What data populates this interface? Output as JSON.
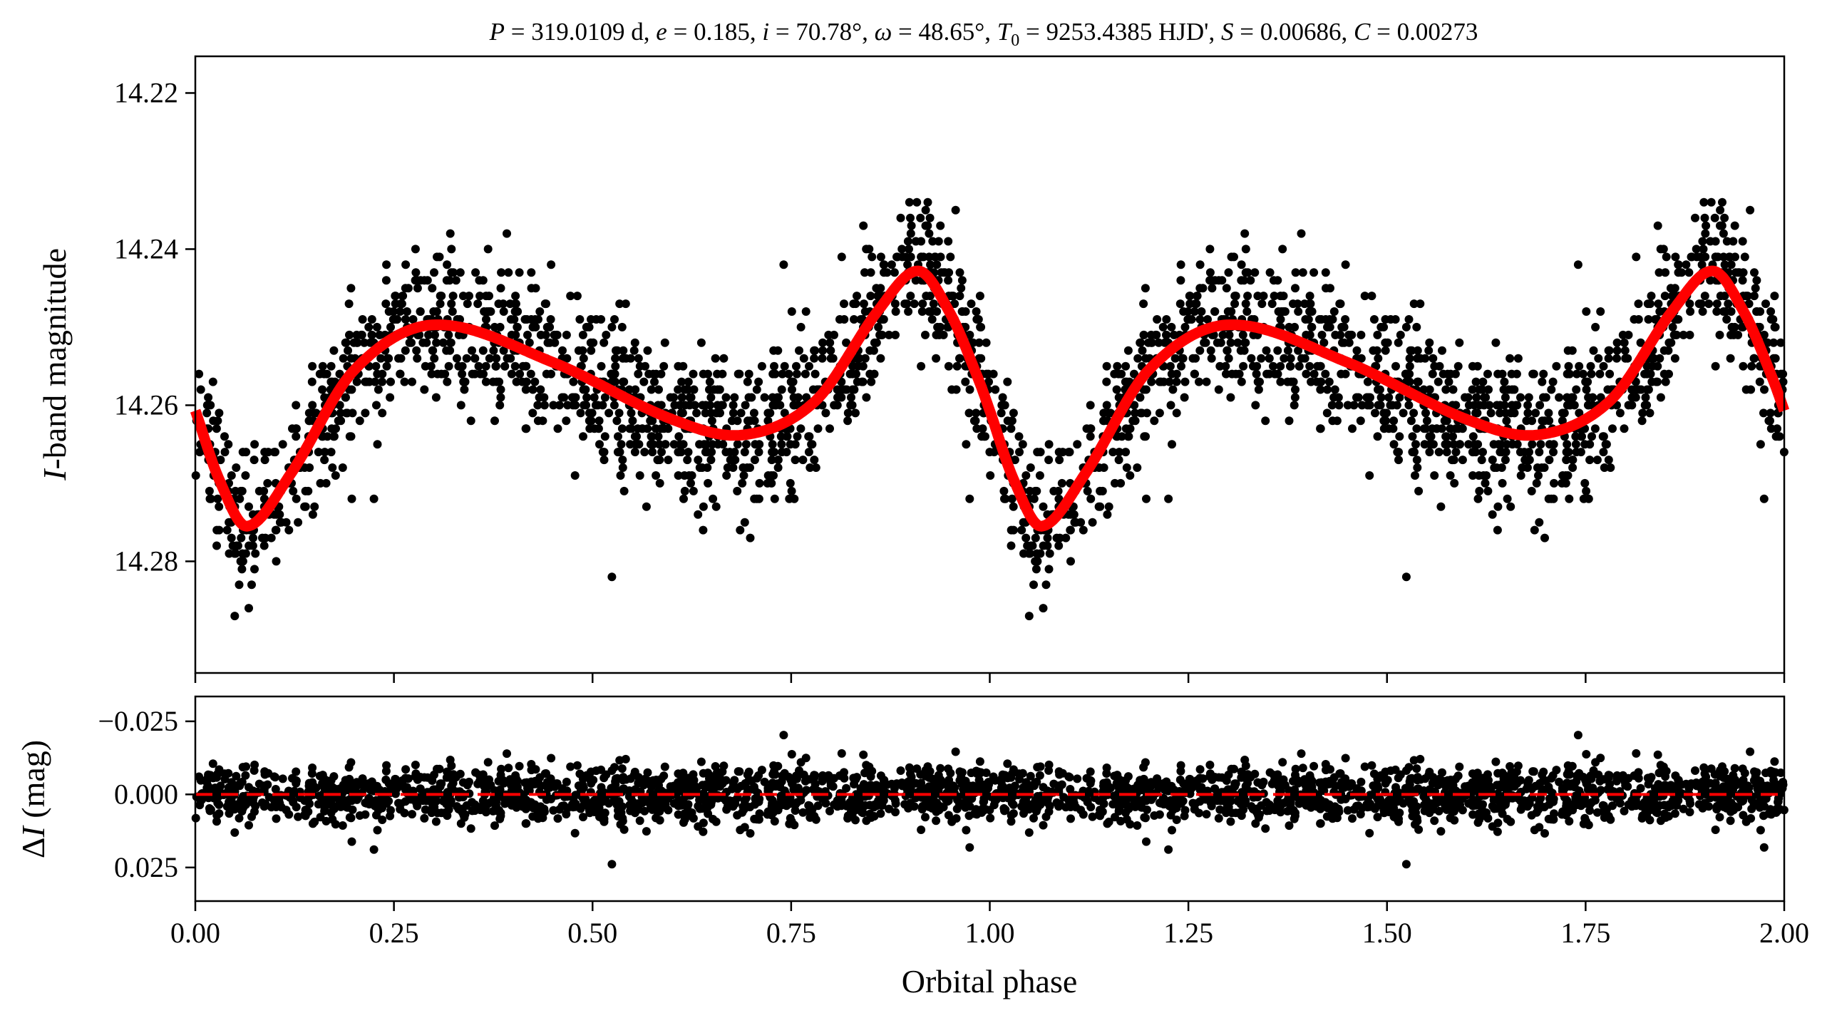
{
  "chart_data": [
    {
      "panel": "top",
      "type": "scatter",
      "title": "P = 319.0109 d, e = 0.185, i = 70.78°, ω = 48.65°, T0 = 9253.4385 HJD', S = 0.00686, C = 0.00273",
      "title_parts": {
        "P": "319.0109 d",
        "e": "0.185",
        "i": "70.78°",
        "omega": "48.65°",
        "T0": "9253.4385 HJD'",
        "S": "0.00686",
        "C": "0.00273"
      },
      "xlabel": "",
      "ylabel": "I-band magnitude",
      "ylabel_parts": {
        "italic": "I",
        "rest": "-band magnitude"
      },
      "xlim": [
        0.0,
        2.0
      ],
      "ylim": [
        14.2943,
        14.2153
      ],
      "y_inverted": true,
      "yticks": [
        "14.22",
        "14.24",
        "14.26",
        "14.28"
      ],
      "ytick_values": [
        14.22,
        14.24,
        14.26,
        14.28
      ],
      "xticks_values": [
        0.0,
        0.25,
        0.5,
        0.75,
        1.0,
        1.25,
        1.5,
        1.75,
        2.0
      ],
      "series": [
        {
          "name": "observations",
          "kind": "points",
          "color": "#000000",
          "n_points_per_cycle": 1300,
          "scatter_sigma_mag": 0.0047,
          "seed": 7
        },
        {
          "name": "model",
          "kind": "line",
          "color": "#ff0000",
          "period_in_phase": 1.0,
          "knots_phase": [
            0.0,
            0.03,
            0.065,
            0.12,
            0.2,
            0.3,
            0.45,
            0.6,
            0.69,
            0.78,
            0.86,
            0.91,
            0.95,
            0.985,
            1.0
          ],
          "knots_mag": [
            14.2607,
            14.2695,
            14.2755,
            14.2688,
            14.2555,
            14.2497,
            14.2545,
            14.2618,
            14.2638,
            14.2595,
            14.2478,
            14.2428,
            14.2482,
            14.2565,
            14.2607
          ]
        }
      ]
    },
    {
      "panel": "bottom",
      "type": "scatter",
      "xlabel": "Orbital phase",
      "ylabel": "ΔI (mag)",
      "ylabel_parts": {
        "delta": "Δ",
        "italic": "I",
        "rest": " (mag)"
      },
      "xlim": [
        0.0,
        2.0
      ],
      "ylim": [
        0.0365,
        -0.0335
      ],
      "y_inverted": true,
      "yticks": [
        "−0.025",
        "0.000",
        "0.025"
      ],
      "ytick_values": [
        -0.025,
        0.0,
        0.025
      ],
      "xticks": [
        "0.00",
        "0.25",
        "0.50",
        "0.75",
        "1.00",
        "1.25",
        "1.50",
        "1.75",
        "2.00"
      ],
      "xtick_values": [
        0.0,
        0.25,
        0.5,
        0.75,
        1.0,
        1.25,
        1.5,
        1.75,
        2.0
      ],
      "series": [
        {
          "name": "residuals",
          "kind": "points",
          "color": "#000000"
        },
        {
          "name": "zero line",
          "kind": "dashed-line",
          "value": 0.0,
          "color": "#ff0000"
        }
      ]
    }
  ]
}
